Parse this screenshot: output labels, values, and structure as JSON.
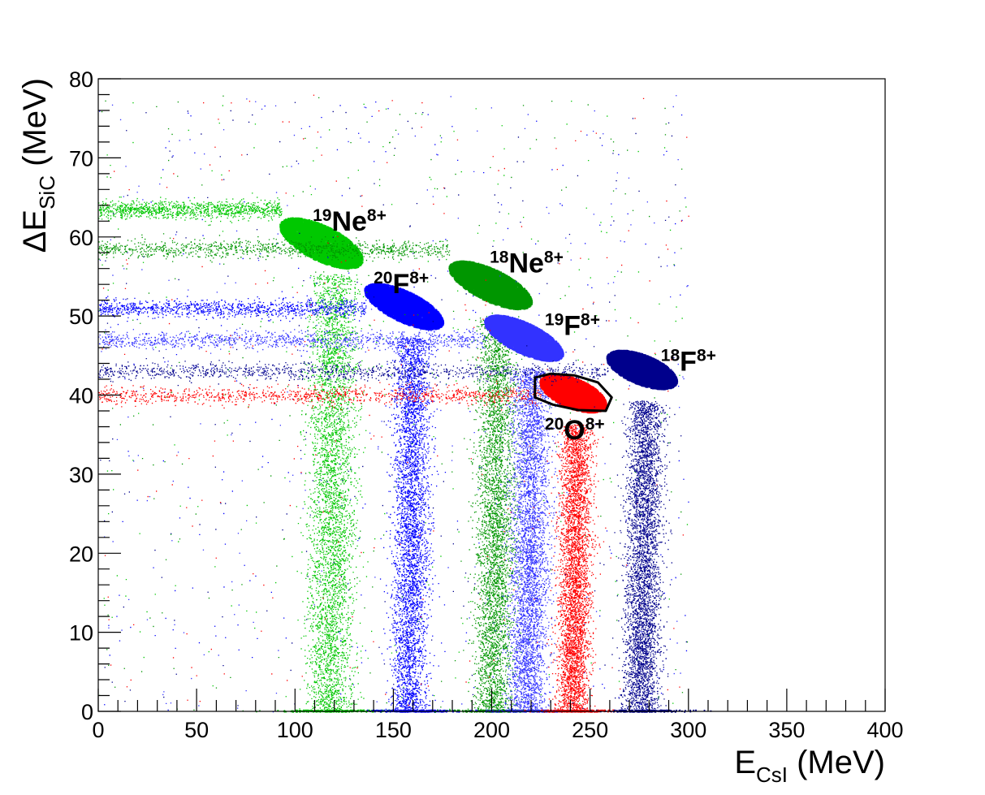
{
  "chart_data": {
    "type": "scatter",
    "title": "",
    "xlabel": {
      "main": "E",
      "sub": "CsI",
      "unit": " (MeV)"
    },
    "ylabel": {
      "main": "ΔE",
      "sub": "SiC",
      "unit": " (MeV)"
    },
    "xlim": [
      0,
      400
    ],
    "ylim": [
      0,
      80
    ],
    "x_ticks": [
      0,
      50,
      100,
      150,
      200,
      250,
      300,
      350,
      400
    ],
    "y_ticks": [
      0,
      10,
      20,
      30,
      40,
      50,
      60,
      70,
      80
    ],
    "grid": false,
    "legend": "none",
    "series": [
      {
        "name": "19Ne8+",
        "color": "#00c800",
        "blob": {
          "x": 113,
          "y": 59.3,
          "sx": 20,
          "sy": 2.3,
          "tilt": -0.1
        },
        "stripe_y": 63.5,
        "trail_x": 120,
        "trail_spread": 13
      },
      {
        "name": "20F8+",
        "color": "#0000ff",
        "blob": {
          "x": 155,
          "y": 51.3,
          "sx": 19,
          "sy": 2.0,
          "tilt": -0.1
        },
        "stripe_y": 51.0,
        "trail_x": 160,
        "trail_spread": 10
      },
      {
        "name": "18Ne8+",
        "color": "#009600",
        "blob": {
          "x": 199,
          "y": 54.0,
          "sx": 20,
          "sy": 2.1,
          "tilt": -0.1
        },
        "stripe_y": 58.5,
        "trail_x": 203,
        "trail_spread": 11
      },
      {
        "name": "19F8+",
        "color": "#3232ff",
        "blob": {
          "x": 216,
          "y": 47.3,
          "sx": 19,
          "sy": 2.0,
          "tilt": -0.1
        },
        "stripe_y": 47.0,
        "trail_x": 220,
        "trail_spread": 11
      },
      {
        "name": "20O8+",
        "color": "#ff0000",
        "blob": {
          "x": 241,
          "y": 40.3,
          "sx": 16,
          "sy": 1.9,
          "tilt": -0.08
        },
        "stripe_y": 40.0,
        "trail_x": 243,
        "trail_spread": 9
      },
      {
        "name": "18F8+",
        "color": "#00008c",
        "blob": {
          "x": 276,
          "y": 43.3,
          "sx": 17,
          "sy": 1.9,
          "tilt": -0.08
        },
        "stripe_y": 43.0,
        "trail_x": 278,
        "trail_spread": 10
      }
    ],
    "cut_contour": {
      "color": "#000000",
      "points": [
        [
          222,
          42.2
        ],
        [
          230,
          42.7
        ],
        [
          242,
          42.5
        ],
        [
          254,
          41.6
        ],
        [
          261,
          39.7
        ],
        [
          258,
          38.0
        ],
        [
          244,
          38.1
        ],
        [
          231,
          38.8
        ],
        [
          222,
          39.7
        ]
      ]
    },
    "annotations": [
      {
        "id": "19Ne",
        "mass": "19",
        "element": "Ne",
        "charge": "8+",
        "x": 109,
        "y": 60.8
      },
      {
        "id": "20F",
        "mass": "20",
        "element": "F",
        "charge": "8+",
        "x": 140,
        "y": 52.9
      },
      {
        "id": "18Ne",
        "mass": "18",
        "element": "Ne",
        "charge": "8+",
        "x": 199,
        "y": 55.5
      },
      {
        "id": "19F",
        "mass": "19",
        "element": "F",
        "charge": "8+",
        "x": 227,
        "y": 47.6
      },
      {
        "id": "18F",
        "mass": "18",
        "element": "F",
        "charge": "8+",
        "x": 286,
        "y": 43.1
      },
      {
        "id": "20O",
        "mass": "20",
        "element": "O",
        "charge": "8+",
        "x": 227,
        "y": 34.4
      }
    ]
  }
}
